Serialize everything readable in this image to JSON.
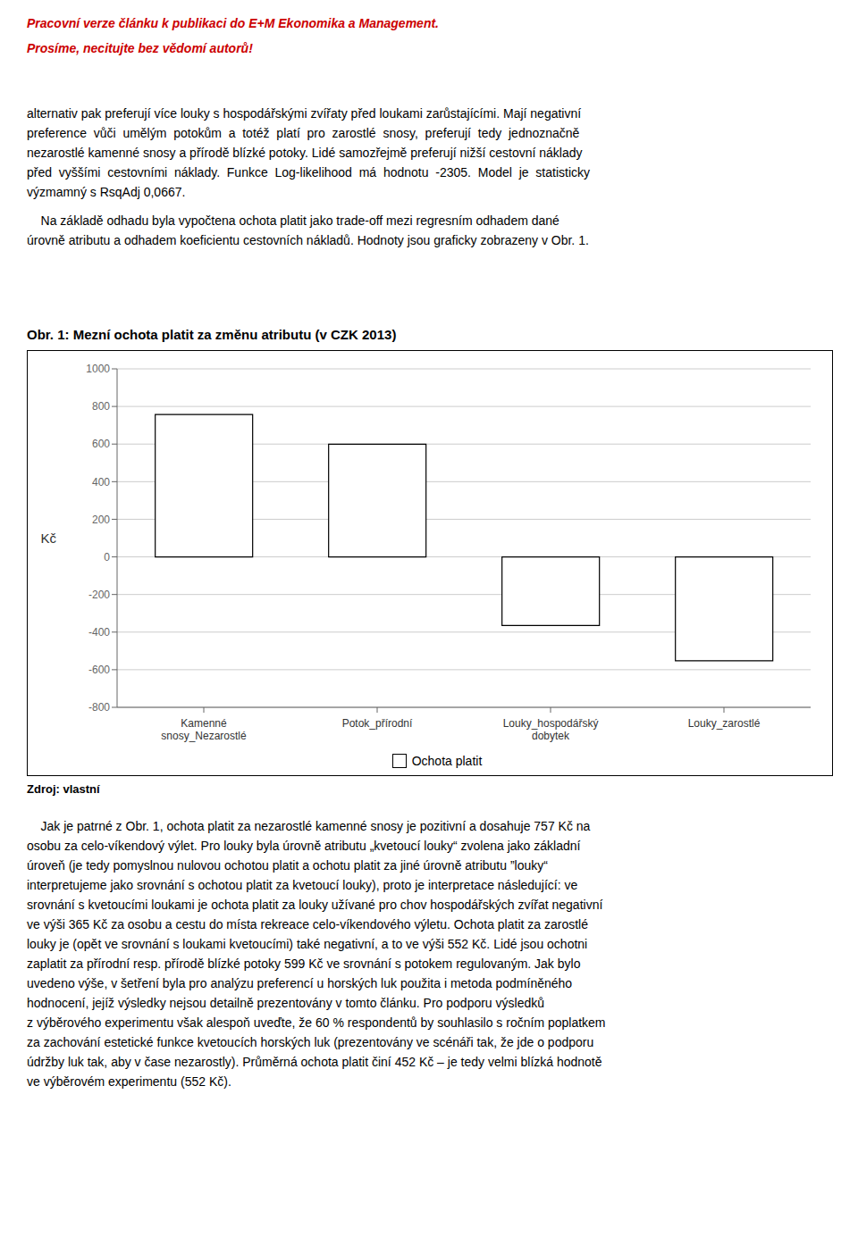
{
  "header_lines": [
    "Pracovní verze článku k publikaci do E+M Ekonomika a Management.",
    "Prosíme, necitujte bez vědomí autorů!"
  ],
  "body_paragraphs": [
    [
      "alternativ pak preferují více louky s hospodářskými zvířaty před loukami zarůstajícími. Mají negativní",
      "preference  vůči  umělým  potokům  a  totéž  platí  pro  zarostlé  snosy,  preferují  tedy  jednoznačně",
      "nezarostlé kamenné snosy a přírodě blízké potoky. Lidé samozřejmě preferují nižší cestovní náklady",
      "před  vyššími  cestovními  náklady.  Funkce  Log-likelihood  má  hodnotu  -2305.  Model  je  statisticky",
      "výzmamný s RsqAdj 0,0667."
    ],
    [
      "    Na základě odhadu byla vypočtena ochota platit jako trade-off mezi regresním odhadem dané",
      "úrovně atributu a odhadem koeficientu cestovních nákladů. Hodnoty jsou graficky zobrazeny v Obr. 1."
    ]
  ],
  "chart_data": {
    "type": "bar",
    "title": "Obr. 1: Mezní ochota platit za změnu atributu (v CZK 2013)",
    "ylabel": "Kč",
    "categories": [
      "Kamenné\nsnosy_Nezarostlé",
      "Potok_přírodní",
      "Louky_hospodářský\ndobytek",
      "Louky_zarostlé"
    ],
    "series": [
      {
        "name": "Ochota platit",
        "color": "#ffffff",
        "values": [
          757,
          599,
          -365,
          -552
        ]
      }
    ],
    "ylim": [
      -800,
      1000
    ],
    "yticks": [
      -800,
      -600,
      -400,
      -200,
      0,
      200,
      400,
      600,
      800,
      1000
    ],
    "grid": true,
    "legend": "bottom"
  },
  "source": "Zdroj: vlastní",
  "footer_lines": [
    "    Jak je patrné z Obr. 1, ochota platit za nezarostlé kamenné snosy je pozitivní a dosahuje 757 Kč na",
    "osobu za celo-víkendový výlet. Pro louky byla úrovně atributu „kvetoucí louky“ zvolena jako základní",
    "úroveň (je tedy pomyslnou nulovou ochotou platit a ochotu platit za jiné úrovně atributu ”louky“",
    "interpretujeme jako srovnání s ochotou platit za kvetoucí louky), proto je interpretace následující: ve",
    "srovnání s kvetoucími loukami je ochota platit za louky užívané pro chov hospodářských zvířat negativní",
    "ve výši 365 Kč za osobu a cestu do místa rekreace celo-víkendového výletu. Ochota platit za zarostlé",
    "louky je (opět ve srovnání s loukami kvetoucími) také negativní, a to ve výši 552 Kč. Lidé jsou ochotni",
    "zaplatit za přírodní resp. přírodě blízké potoky 599 Kč ve srovnání s potokem regulovaným. Jak bylo",
    "uvedeno výše, v šetření byla pro analýzu preferencí u horských luk použita i metoda podmíněného",
    "hodnocení, jejíž výsledky nejsou detailně prezentovány v tomto článku. Pro podporu výsledků",
    "z výběrového experimentu však alespoň uveďte, že 60 % respondentů by souhlasilo s ročním poplatkem",
    "za zachování estetické funkce kvetoucích horských luk (prezentovány ve scénáři tak, že jde o podporu",
    "údržby luk tak, aby v čase nezarostly). Průměrná ochota platit činí 452 Kč – je tedy velmi blízká hodnotě",
    "ve výběrovém experimentu (552 Kč)."
  ]
}
